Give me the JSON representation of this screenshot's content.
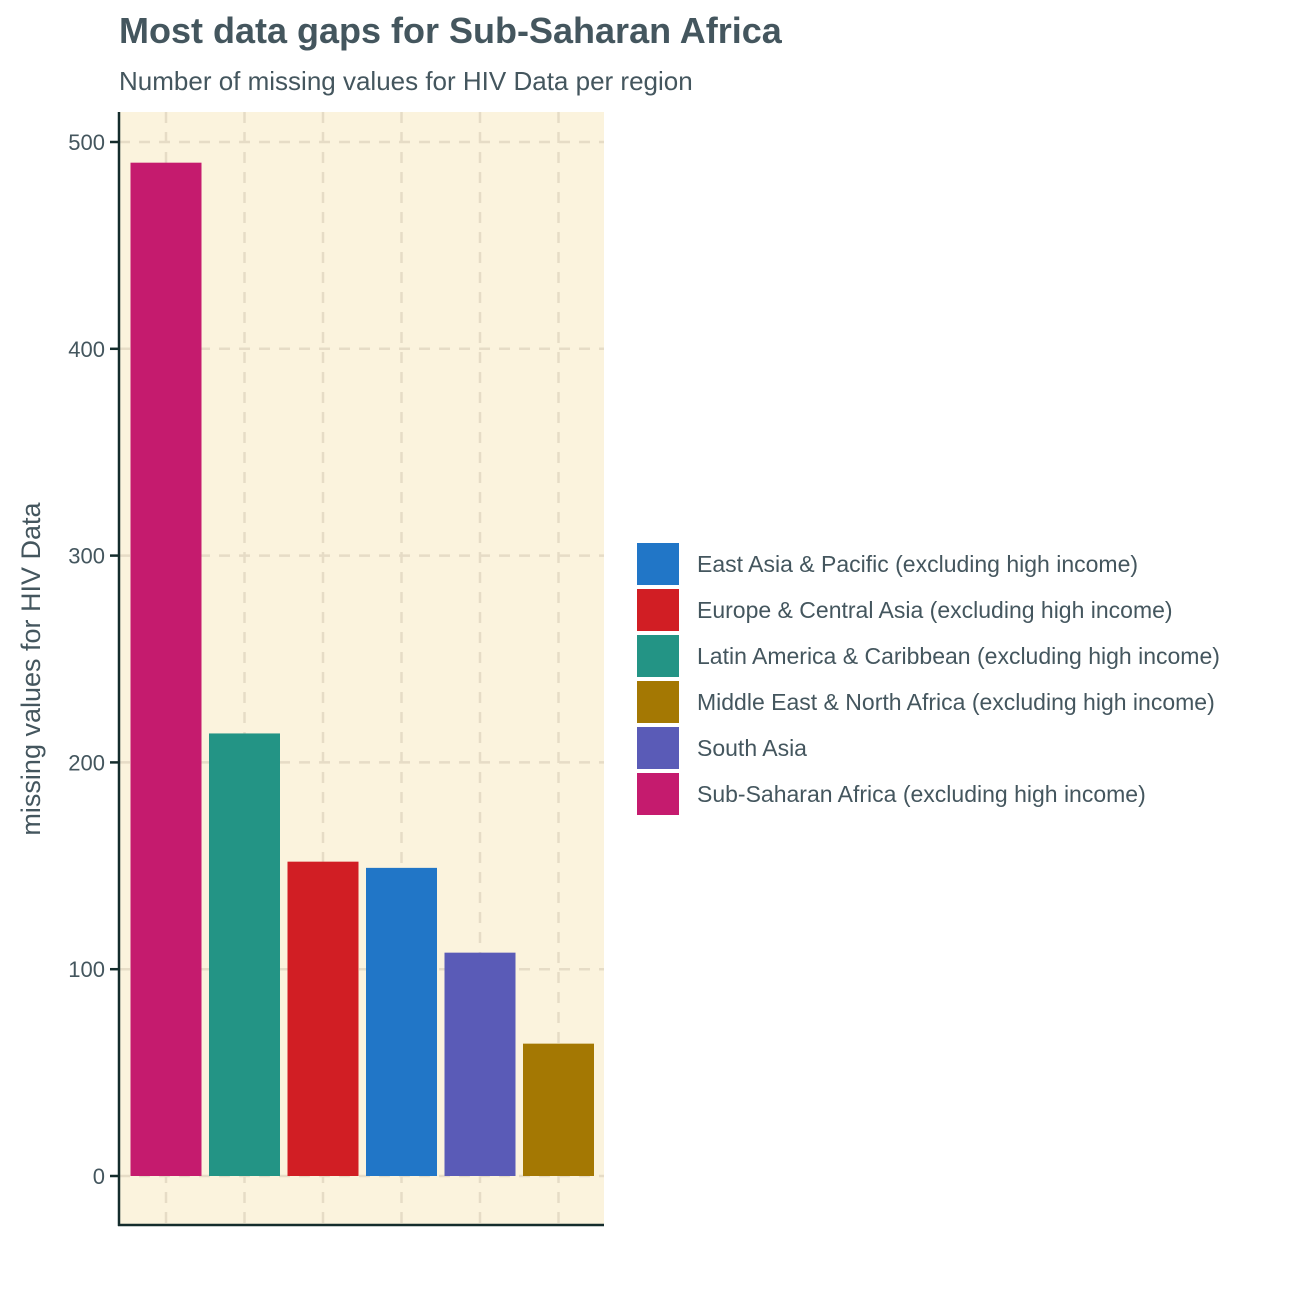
{
  "chart_data": {
    "type": "bar",
    "title": "Most data gaps for Sub-Saharan Africa",
    "subtitle": "Number of missing values for HIV Data per region",
    "xlabel": "",
    "ylabel": "missing values for HIV Data",
    "ylim": [
      -22,
      521
    ],
    "yticks": [
      0,
      100,
      200,
      300,
      400,
      500
    ],
    "grid": true,
    "legend_position": "right",
    "panel_background": "#fbf3dd",
    "categories": [
      "Sub-Saharan Africa (excluding high income)",
      "Latin America & Caribbean (excluding high income)",
      "Europe & Central Asia (excluding high income)",
      "East Asia & Pacific (excluding high income)",
      "South Asia",
      "Middle East & North Africa (excluding high income)"
    ],
    "values": [
      490,
      214,
      152,
      149,
      108,
      64
    ],
    "colors": [
      "#c51b6e",
      "#239485",
      "#d11e24",
      "#2176c7",
      "#5a5bb7",
      "#a47803"
    ],
    "legend": [
      {
        "label": "East Asia & Pacific (excluding high income)",
        "color": "#2176c7"
      },
      {
        "label": "Europe & Central Asia (excluding high income)",
        "color": "#d11e24"
      },
      {
        "label": "Latin America & Caribbean (excluding high income)",
        "color": "#239485"
      },
      {
        "label": "Middle East & North Africa (excluding high income)",
        "color": "#a47803"
      },
      {
        "label": "South Asia",
        "color": "#5a5bb7"
      },
      {
        "label": "Sub-Saharan Africa (excluding high income)",
        "color": "#c51b6e"
      }
    ]
  }
}
